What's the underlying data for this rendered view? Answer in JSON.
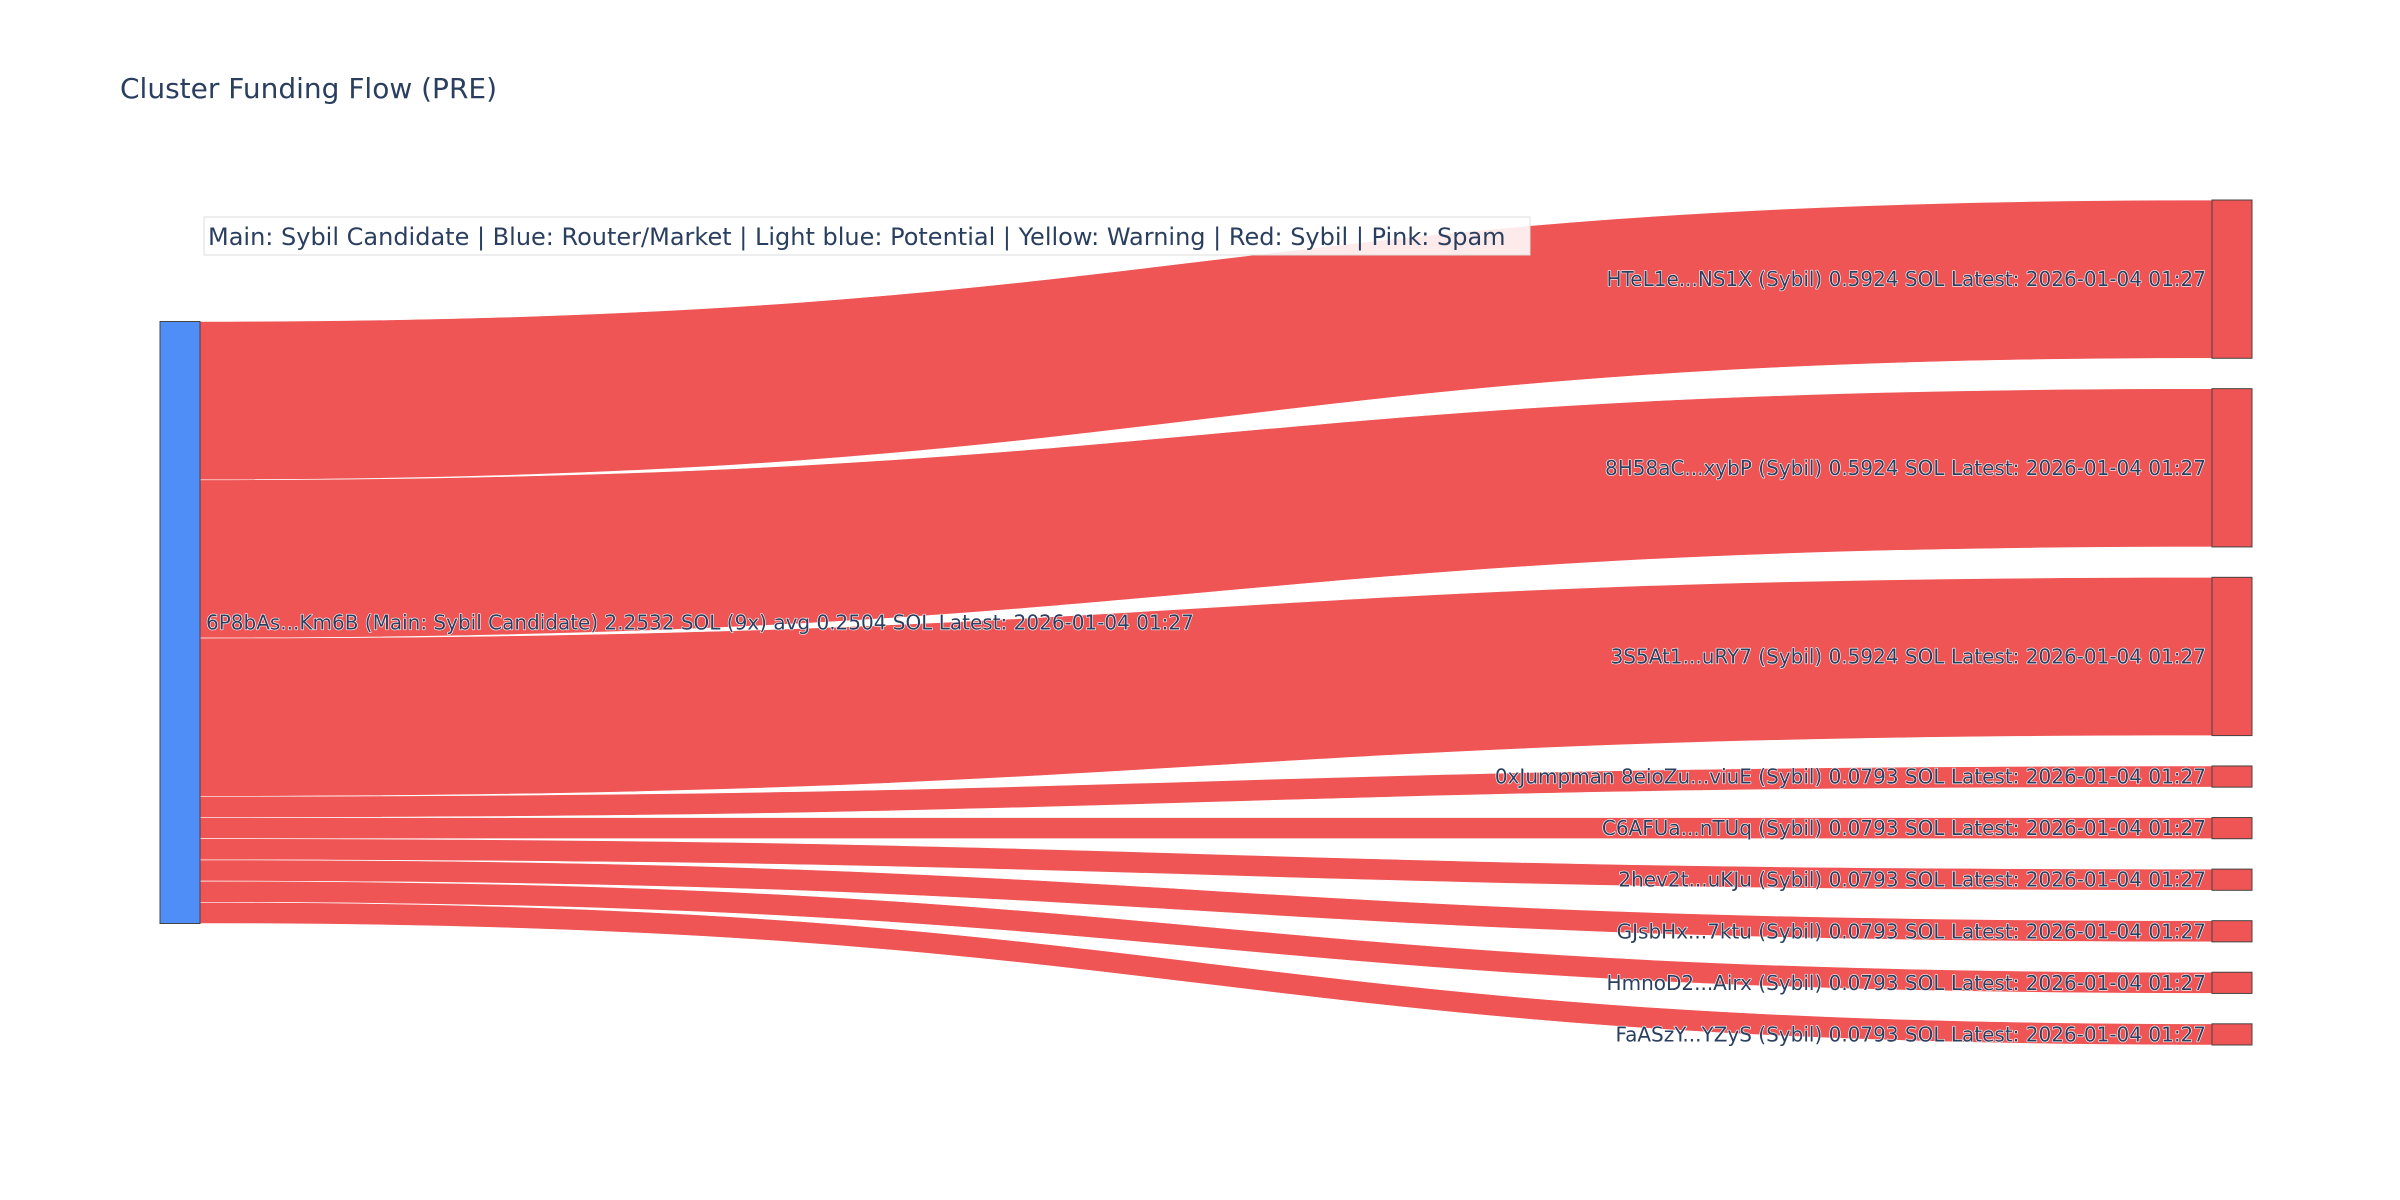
{
  "title": "Cluster Funding Flow (PRE)",
  "legend_text": "Main: Sybil Candidate  |  Blue: Router/Market | Light blue: Potential | Yellow: Warning | Red: Sybil | Pink: Spam",
  "colors": {
    "main_node": "#4f8df7",
    "sybil_node": "#ef5555",
    "link": "#ef5555",
    "node_outline": "#444444",
    "text": "#2a3f5f"
  },
  "chart_data": {
    "type": "sankey",
    "title": "Cluster Funding Flow (PRE)",
    "nodes": [
      {
        "id": "main",
        "label": "6P8bAs...Km6B (Main: Sybil Candidate) 2.2532 SOL (9x) avg 0.2504 SOL Latest: 2026-01-04 01:27",
        "category": "Main: Sybil Candidate",
        "value": 2.2532
      },
      {
        "id": "t1",
        "label": "HTeL1e...NS1X (Sybil) 0.5924 SOL Latest: 2026-01-04 01:27",
        "category": "Sybil",
        "value": 0.5924
      },
      {
        "id": "t2",
        "label": "8H58aC...xybP (Sybil) 0.5924 SOL Latest: 2026-01-04 01:27",
        "category": "Sybil",
        "value": 0.5924
      },
      {
        "id": "t3",
        "label": "3S5At1...uRY7 (Sybil) 0.5924 SOL Latest: 2026-01-04 01:27",
        "category": "Sybil",
        "value": 0.5924
      },
      {
        "id": "t4",
        "label": "0xJumpman 8eioZu...viuE (Sybil) 0.0793 SOL Latest: 2026-01-04 01:27",
        "category": "Sybil",
        "value": 0.0793
      },
      {
        "id": "t5",
        "label": "C6AFUa...nTUq (Sybil) 0.0793 SOL Latest: 2026-01-04 01:27",
        "category": "Sybil",
        "value": 0.0793
      },
      {
        "id": "t6",
        "label": "2hev2t...uKJu (Sybil) 0.0793 SOL Latest: 2026-01-04 01:27",
        "category": "Sybil",
        "value": 0.0793
      },
      {
        "id": "t7",
        "label": "GJsbHx...7ktu (Sybil) 0.0793 SOL Latest: 2026-01-04 01:27",
        "category": "Sybil",
        "value": 0.0793
      },
      {
        "id": "t8",
        "label": "HmnoD2...Airx (Sybil) 0.0793 SOL Latest: 2026-01-04 01:27",
        "category": "Sybil",
        "value": 0.0793
      },
      {
        "id": "t9",
        "label": "FaASzY...YZyS (Sybil) 0.0793 SOL Latest: 2026-01-04 01:27",
        "category": "Sybil",
        "value": 0.0793
      }
    ],
    "links": [
      {
        "source": "main",
        "target": "t1",
        "value": 0.5924
      },
      {
        "source": "main",
        "target": "t2",
        "value": 0.5924
      },
      {
        "source": "main",
        "target": "t3",
        "value": 0.5924
      },
      {
        "source": "main",
        "target": "t4",
        "value": 0.0793
      },
      {
        "source": "main",
        "target": "t5",
        "value": 0.0793
      },
      {
        "source": "main",
        "target": "t6",
        "value": 0.0793
      },
      {
        "source": "main",
        "target": "t7",
        "value": 0.0793
      },
      {
        "source": "main",
        "target": "t8",
        "value": 0.0793
      },
      {
        "source": "main",
        "target": "t9",
        "value": 0.0793
      }
    ]
  }
}
